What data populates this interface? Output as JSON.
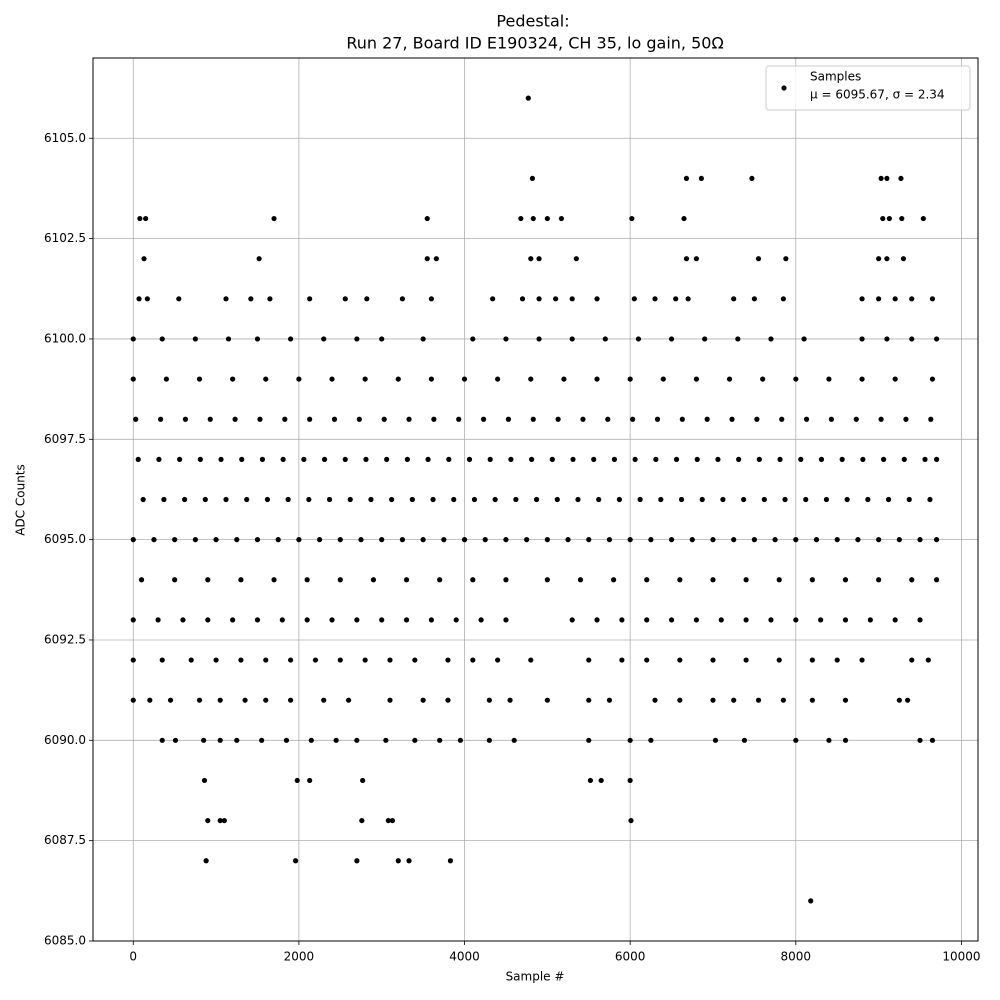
{
  "chart_data": {
    "type": "scatter",
    "title": "Pedestal:",
    "subtitle": "Run 27, Board ID E190324, CH 35, lo gain, 50Ω",
    "x_label": "Sample #",
    "y_label": "ADC Counts",
    "xlim": [
      -486,
      10200
    ],
    "ylim": [
      6085,
      6107
    ],
    "xticks": [
      0,
      2000,
      4000,
      6000,
      8000,
      10000
    ],
    "yticks": [
      {
        "value": 6085,
        "label": "6085.0"
      },
      {
        "value": 6087.5,
        "label": "6087.5"
      },
      {
        "value": 6090,
        "label": "6090.0"
      },
      {
        "value": 6092.5,
        "label": "6092.5"
      },
      {
        "value": 6095,
        "label": "6095.0"
      },
      {
        "value": 6097.5,
        "label": "6097.5"
      },
      {
        "value": 6100,
        "label": "6100.0"
      },
      {
        "value": 6102.5,
        "label": "6102.5"
      },
      {
        "value": 6105,
        "label": "6105.0"
      }
    ],
    "grid": true,
    "legend_position": "upper right",
    "legend_note": "μ = 6095.67, σ = 2.34",
    "series": [
      {
        "name": "Samples",
        "color": "#000000",
        "x": [
          0,
          250,
          500,
          750,
          1000,
          1250,
          1500,
          1750,
          2000,
          2250,
          2500,
          2750,
          3000,
          3250,
          3500,
          3750,
          4000,
          4250,
          4500,
          4750,
          5000,
          5250,
          5500,
          5750,
          6000,
          6250,
          6500,
          6750,
          7000,
          7250,
          7500,
          7750,
          8000,
          8250,
          8500,
          8750,
          9000,
          9250,
          9500,
          9700,
          120,
          370,
          620,
          870,
          1120,
          1370,
          1620,
          1870,
          2120,
          2370,
          2620,
          2870,
          3120,
          3370,
          3620,
          3870,
          4120,
          4370,
          4620,
          4870,
          5120,
          5370,
          5620,
          5870,
          6120,
          6370,
          6620,
          6870,
          7120,
          7370,
          7620,
          7870,
          8120,
          8370,
          8620,
          8870,
          9120,
          9370,
          9620,
          60,
          310,
          560,
          810,
          1060,
          1310,
          1560,
          1810,
          2060,
          2310,
          2560,
          2810,
          3060,
          3310,
          3560,
          3810,
          4060,
          4310,
          4560,
          4810,
          5060,
          5310,
          5560,
          5810,
          6060,
          6310,
          6560,
          6810,
          7060,
          7310,
          7560,
          7810,
          8060,
          8310,
          8560,
          8810,
          9060,
          9310,
          9560,
          9700,
          30,
          330,
          630,
          930,
          1230,
          1530,
          1830,
          2130,
          2430,
          2730,
          3030,
          3330,
          3630,
          3930,
          4230,
          4530,
          4830,
          5130,
          5430,
          5730,
          6030,
          6330,
          6630,
          6930,
          7230,
          7530,
          7830,
          8130,
          8430,
          8730,
          9030,
          9330,
          9630,
          0,
          400,
          800,
          1200,
          1600,
          2000,
          2400,
          2800,
          3200,
          3600,
          4000,
          4400,
          4800,
          5200,
          5600,
          6000,
          6400,
          6800,
          7200,
          7600,
          8000,
          8400,
          8800,
          9200,
          9650,
          0,
          350,
          750,
          1150,
          1500,
          1900,
          2300,
          2700,
          3000,
          3500,
          4100,
          4500,
          4900,
          5300,
          5700,
          6100,
          6500,
          6900,
          7300,
          7700,
          8100,
          8800,
          9100,
          9400,
          9700,
          100,
          500,
          900,
          1300,
          1700,
          2100,
          2500,
          2900,
          3300,
          3700,
          4100,
          4500,
          5000,
          5400,
          5800,
          6200,
          6600,
          7000,
          7400,
          7800,
          8200,
          8600,
          9000,
          9400,
          9700,
          0,
          300,
          600,
          900,
          1200,
          1500,
          1800,
          2100,
          2400,
          2700,
          3000,
          3300,
          3600,
          3900,
          4200,
          4500,
          5300,
          5600,
          5900,
          6200,
          6500,
          6800,
          7100,
          7400,
          7700,
          8000,
          8300,
          8600,
          8900,
          9200,
          9500,
          0,
          350,
          700,
          1000,
          1300,
          1600,
          1900,
          2200,
          2500,
          2800,
          3100,
          3400,
          3800,
          4100,
          4400,
          4800,
          5500,
          5900,
          6200,
          6600,
          7000,
          7400,
          7800,
          8200,
          8500,
          8800,
          9400,
          9600,
          0,
          200,
          450,
          800,
          1050,
          1350,
          1600,
          1900,
          2300,
          2600,
          3100,
          3500,
          3800,
          4300,
          4550,
          5000,
          5500,
          5750,
          6300,
          6600,
          7000,
          7250,
          7550,
          7850,
          8200,
          8600,
          9250,
          9350,
          350,
          510,
          850,
          1050,
          1250,
          1550,
          1850,
          2150,
          2450,
          2700,
          3050,
          3400,
          3700,
          3950,
          4300,
          4600,
          5500,
          6000,
          6250,
          7030,
          7380,
          8000,
          8400,
          8600,
          9500,
          9650,
          860,
          1980,
          2130,
          2770,
          5520,
          5650,
          6000,
          900,
          1050,
          1100,
          2760,
          3080,
          3130,
          6010,
          880,
          1960,
          2700,
          3200,
          3330,
          3830,
          8180,
          70,
          170,
          550,
          1120,
          1420,
          1650,
          2130,
          2560,
          2820,
          3250,
          3600,
          4340,
          4700,
          4900,
          5100,
          5300,
          5600,
          6050,
          6300,
          6550,
          6700,
          7250,
          7500,
          7850,
          8800,
          9000,
          9200,
          9400,
          9650,
          130,
          1520,
          3550,
          3660,
          4800,
          4900,
          5350,
          6680,
          6800,
          7550,
          7880,
          9000,
          9100,
          9300,
          80,
          150,
          1700,
          3550,
          4680,
          4830,
          5000,
          5170,
          6020,
          6650,
          9050,
          9130,
          9280,
          9540,
          4820,
          6680,
          6860,
          7470,
          9030,
          9100,
          9270,
          4770
        ],
        "values": [
          6095,
          6095,
          6095,
          6095,
          6095,
          6095,
          6095,
          6095,
          6095,
          6095,
          6095,
          6095,
          6095,
          6095,
          6095,
          6095,
          6095,
          6095,
          6095,
          6095,
          6095,
          6095,
          6095,
          6095,
          6095,
          6095,
          6095,
          6095,
          6095,
          6095,
          6095,
          6095,
          6095,
          6095,
          6095,
          6095,
          6095,
          6095,
          6095,
          6095,
          6096,
          6096,
          6096,
          6096,
          6096,
          6096,
          6096,
          6096,
          6096,
          6096,
          6096,
          6096,
          6096,
          6096,
          6096,
          6096,
          6096,
          6096,
          6096,
          6096,
          6096,
          6096,
          6096,
          6096,
          6096,
          6096,
          6096,
          6096,
          6096,
          6096,
          6096,
          6096,
          6096,
          6096,
          6096,
          6096,
          6096,
          6096,
          6096,
          6097,
          6097,
          6097,
          6097,
          6097,
          6097,
          6097,
          6097,
          6097,
          6097,
          6097,
          6097,
          6097,
          6097,
          6097,
          6097,
          6097,
          6097,
          6097,
          6097,
          6097,
          6097,
          6097,
          6097,
          6097,
          6097,
          6097,
          6097,
          6097,
          6097,
          6097,
          6097,
          6097,
          6097,
          6097,
          6097,
          6097,
          6097,
          6097,
          6097,
          6098,
          6098,
          6098,
          6098,
          6098,
          6098,
          6098,
          6098,
          6098,
          6098,
          6098,
          6098,
          6098,
          6098,
          6098,
          6098,
          6098,
          6098,
          6098,
          6098,
          6098,
          6098,
          6098,
          6098,
          6098,
          6098,
          6098,
          6098,
          6098,
          6098,
          6098,
          6098,
          6098,
          6099,
          6099,
          6099,
          6099,
          6099,
          6099,
          6099,
          6099,
          6099,
          6099,
          6099,
          6099,
          6099,
          6099,
          6099,
          6099,
          6099,
          6099,
          6099,
          6099,
          6099,
          6099,
          6099,
          6099,
          6099,
          6100,
          6100,
          6100,
          6100,
          6100,
          6100,
          6100,
          6100,
          6100,
          6100,
          6100,
          6100,
          6100,
          6100,
          6100,
          6100,
          6100,
          6100,
          6100,
          6100,
          6100,
          6100,
          6100,
          6100,
          6100,
          6094,
          6094,
          6094,
          6094,
          6094,
          6094,
          6094,
          6094,
          6094,
          6094,
          6094,
          6094,
          6094,
          6094,
          6094,
          6094,
          6094,
          6094,
          6094,
          6094,
          6094,
          6094,
          6094,
          6094,
          6094,
          6093,
          6093,
          6093,
          6093,
          6093,
          6093,
          6093,
          6093,
          6093,
          6093,
          6093,
          6093,
          6093,
          6093,
          6093,
          6093,
          6093,
          6093,
          6093,
          6093,
          6093,
          6093,
          6093,
          6093,
          6093,
          6093,
          6093,
          6093,
          6093,
          6093,
          6093,
          6092,
          6092,
          6092,
          6092,
          6092,
          6092,
          6092,
          6092,
          6092,
          6092,
          6092,
          6092,
          6092,
          6092,
          6092,
          6092,
          6092,
          6092,
          6092,
          6092,
          6092,
          6092,
          6092,
          6092,
          6092,
          6092,
          6092,
          6092,
          6091,
          6091,
          6091,
          6091,
          6091,
          6091,
          6091,
          6091,
          6091,
          6091,
          6091,
          6091,
          6091,
          6091,
          6091,
          6091,
          6091,
          6091,
          6091,
          6091,
          6091,
          6091,
          6091,
          6091,
          6091,
          6091,
          6091,
          6091,
          6090,
          6090,
          6090,
          6090,
          6090,
          6090,
          6090,
          6090,
          6090,
          6090,
          6090,
          6090,
          6090,
          6090,
          6090,
          6090,
          6090,
          6090,
          6090,
          6090,
          6090,
          6090,
          6090,
          6090,
          6090,
          6090,
          6089,
          6089,
          6089,
          6089,
          6089,
          6089,
          6089,
          6088,
          6088,
          6088,
          6088,
          6088,
          6088,
          6088,
          6087,
          6087,
          6087,
          6087,
          6087,
          6087,
          6086,
          6101,
          6101,
          6101,
          6101,
          6101,
          6101,
          6101,
          6101,
          6101,
          6101,
          6101,
          6101,
          6101,
          6101,
          6101,
          6101,
          6101,
          6101,
          6101,
          6101,
          6101,
          6101,
          6101,
          6101,
          6101,
          6101,
          6101,
          6101,
          6101,
          6102,
          6102,
          6102,
          6102,
          6102,
          6102,
          6102,
          6102,
          6102,
          6102,
          6102,
          6102,
          6102,
          6102,
          6103,
          6103,
          6103,
          6103,
          6103,
          6103,
          6103,
          6103,
          6103,
          6103,
          6103,
          6103,
          6103,
          6103,
          6104,
          6104,
          6104,
          6104,
          6104,
          6104,
          6104,
          6106
        ]
      }
    ]
  }
}
